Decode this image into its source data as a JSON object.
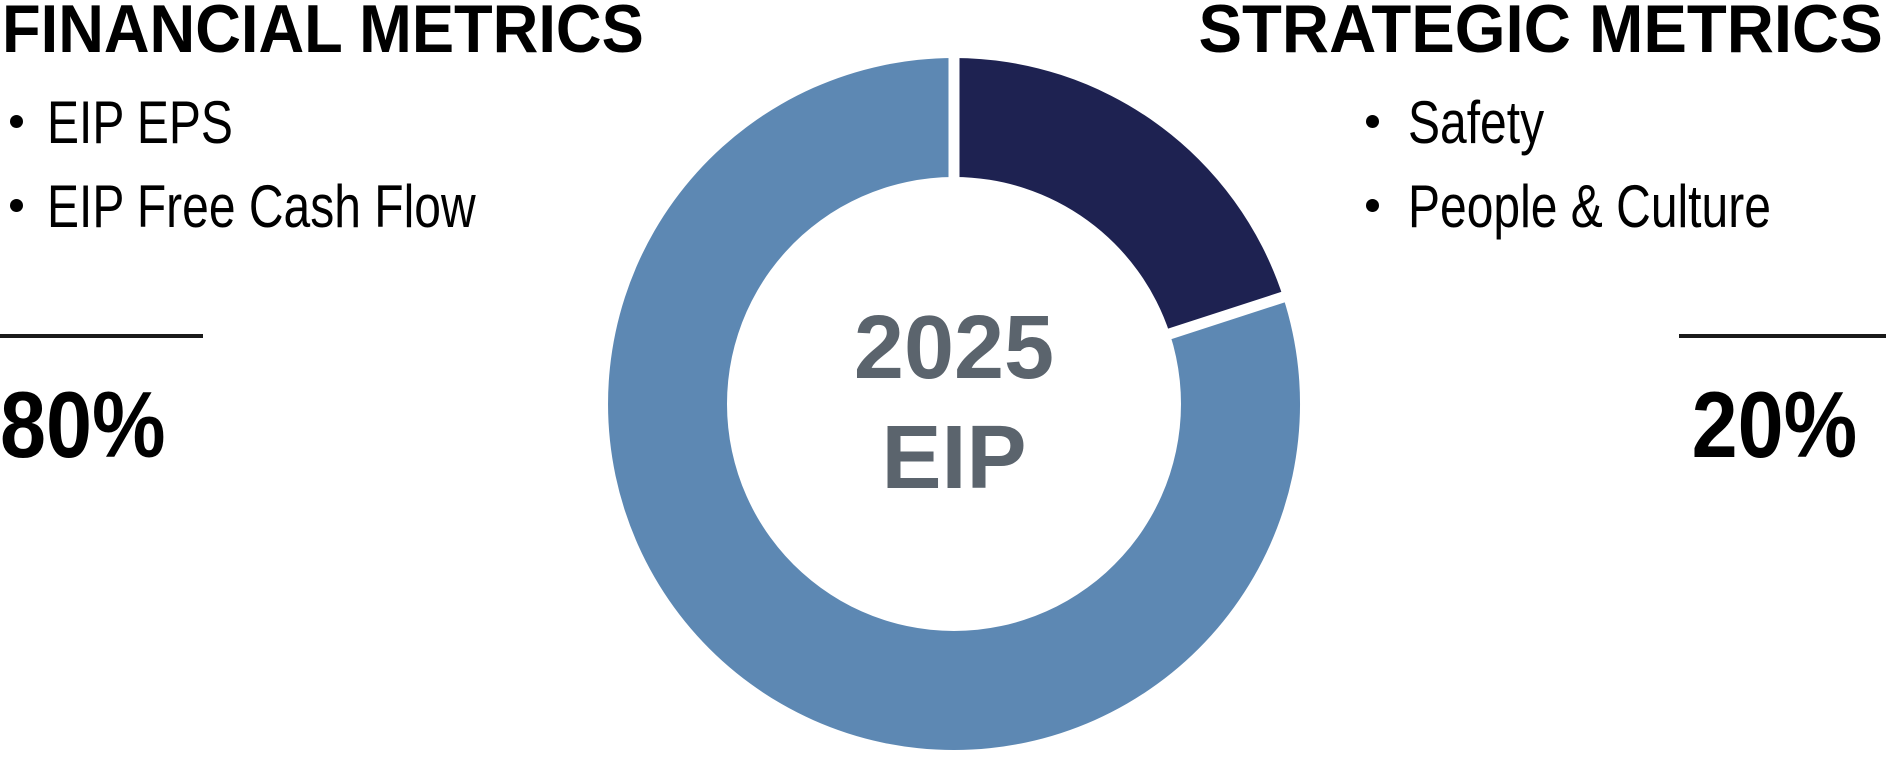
{
  "left_panel": {
    "title": "FINANCIAL METRICS",
    "items": [
      "EIP EPS",
      "EIP Free Cash Flow"
    ],
    "percent": "80%"
  },
  "right_panel": {
    "title": "STRATEGIC METRICS",
    "items": [
      "Safety",
      "People & Culture"
    ],
    "percent": "20%"
  },
  "chart_data": {
    "type": "pie",
    "subtype": "donut",
    "title": "2025 EIP annual incentive plan metric weighting",
    "center_label_line1": "2025",
    "center_label_line2": "EIP",
    "start_angle_deg_from_top": 0,
    "direction": "clockwise",
    "slices": [
      {
        "label": "Strategic Metrics",
        "value": 20,
        "color": "#1e2251"
      },
      {
        "label": "Financial Metrics",
        "value": 80,
        "color": "#5d88b3"
      }
    ],
    "separator_color": "#ffffff",
    "center_text_color": "#5b646d",
    "legend_position": "none"
  }
}
